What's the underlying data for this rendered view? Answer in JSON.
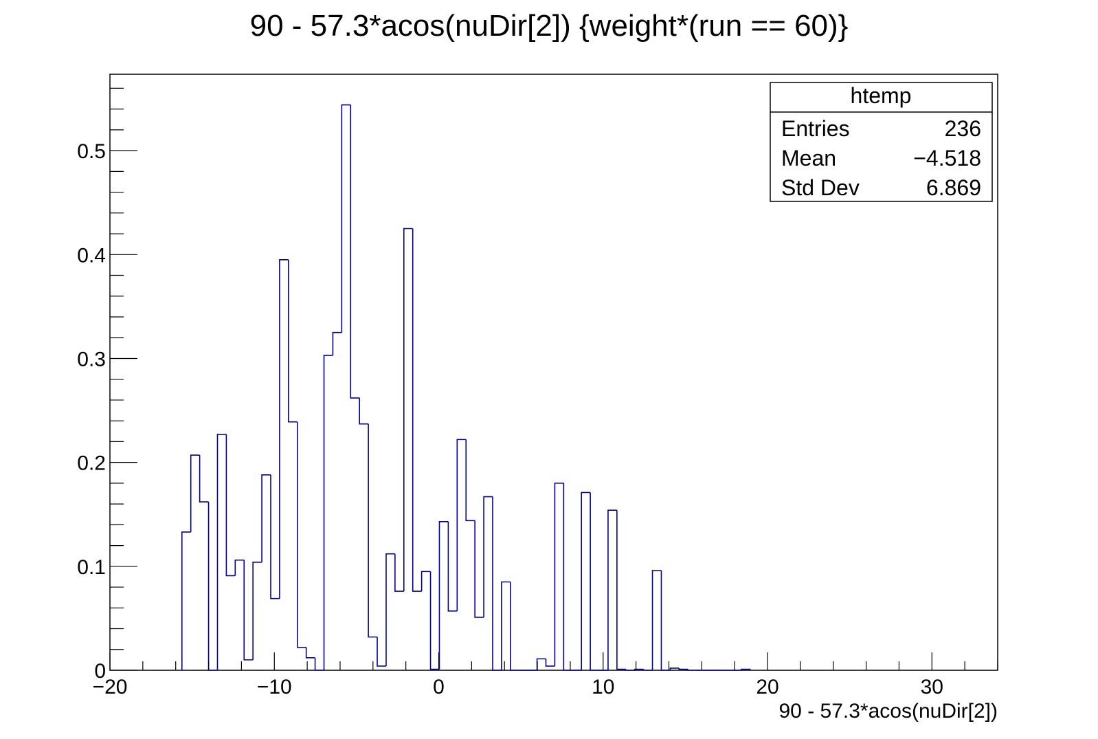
{
  "chart_data": {
    "type": "bar",
    "histogram": true,
    "title": "90 - 57.3*acos(nuDir[2]) {weight*(run == 60)}",
    "xlabel": "90 - 57.3*acos(nuDir[2])",
    "ylabel": "",
    "xlim": [
      -20,
      34
    ],
    "ylim": [
      0,
      0.5735
    ],
    "x_ticks": [
      -20,
      -10,
      0,
      10,
      20,
      30
    ],
    "x_tick_labels": [
      "−20",
      "−10",
      "0",
      "10",
      "20",
      "30"
    ],
    "y_ticks": [
      0,
      0.1,
      0.2,
      0.3,
      0.4,
      0.5
    ],
    "y_tick_labels": [
      "0",
      "0.1",
      "0.2",
      "0.3",
      "0.4",
      "0.5"
    ],
    "line_color": "#000099",
    "bin_width": 0.54,
    "bins": [
      {
        "x_low": -15.62,
        "value": 0.133
      },
      {
        "x_low": -15.08,
        "value": 0.207
      },
      {
        "x_low": -14.54,
        "value": 0.162
      },
      {
        "x_low": -14.0,
        "value": 0.0
      },
      {
        "x_low": -13.46,
        "value": 0.227
      },
      {
        "x_low": -12.92,
        "value": 0.091
      },
      {
        "x_low": -12.38,
        "value": 0.106
      },
      {
        "x_low": -11.84,
        "value": 0.01
      },
      {
        "x_low": -11.3,
        "value": 0.104
      },
      {
        "x_low": -10.76,
        "value": 0.188
      },
      {
        "x_low": -10.22,
        "value": 0.069
      },
      {
        "x_low": -9.68,
        "value": 0.395
      },
      {
        "x_low": -9.14,
        "value": 0.239
      },
      {
        "x_low": -8.6,
        "value": 0.022
      },
      {
        "x_low": -8.06,
        "value": 0.012
      },
      {
        "x_low": -7.52,
        "value": 0.0
      },
      {
        "x_low": -6.98,
        "value": 0.303
      },
      {
        "x_low": -6.44,
        "value": 0.325
      },
      {
        "x_low": -5.9,
        "value": 0.544
      },
      {
        "x_low": -5.36,
        "value": 0.262
      },
      {
        "x_low": -4.82,
        "value": 0.237
      },
      {
        "x_low": -4.28,
        "value": 0.032
      },
      {
        "x_low": -3.74,
        "value": 0.004
      },
      {
        "x_low": -3.2,
        "value": 0.112
      },
      {
        "x_low": -2.66,
        "value": 0.076
      },
      {
        "x_low": -2.12,
        "value": 0.425
      },
      {
        "x_low": -1.58,
        "value": 0.076
      },
      {
        "x_low": -1.04,
        "value": 0.095
      },
      {
        "x_low": -0.5,
        "value": 0.001
      },
      {
        "x_low": 0.04,
        "value": 0.143
      },
      {
        "x_low": 0.58,
        "value": 0.057
      },
      {
        "x_low": 1.12,
        "value": 0.222
      },
      {
        "x_low": 1.66,
        "value": 0.144
      },
      {
        "x_low": 2.2,
        "value": 0.051
      },
      {
        "x_low": 2.74,
        "value": 0.167
      },
      {
        "x_low": 3.28,
        "value": 0.0
      },
      {
        "x_low": 3.82,
        "value": 0.085
      },
      {
        "x_low": 4.36,
        "value": 0.0
      },
      {
        "x_low": 4.9,
        "value": 0.0
      },
      {
        "x_low": 5.44,
        "value": 0.0
      },
      {
        "x_low": 5.98,
        "value": 0.011
      },
      {
        "x_low": 6.52,
        "value": 0.004
      },
      {
        "x_low": 7.06,
        "value": 0.18
      },
      {
        "x_low": 7.6,
        "value": 0.0
      },
      {
        "x_low": 8.14,
        "value": 0.0
      },
      {
        "x_low": 8.68,
        "value": 0.171
      },
      {
        "x_low": 9.22,
        "value": 0.0
      },
      {
        "x_low": 9.76,
        "value": 0.0
      },
      {
        "x_low": 10.3,
        "value": 0.154
      },
      {
        "x_low": 10.84,
        "value": 0.001
      },
      {
        "x_low": 11.38,
        "value": 0.0
      },
      {
        "x_low": 11.92,
        "value": 0.001
      },
      {
        "x_low": 12.46,
        "value": 0.0
      },
      {
        "x_low": 13.0,
        "value": 0.096
      },
      {
        "x_low": 13.54,
        "value": 0.0
      },
      {
        "x_low": 14.08,
        "value": 0.002
      },
      {
        "x_low": 14.62,
        "value": 0.001
      },
      {
        "x_low": 15.16,
        "value": 0.0
      },
      {
        "x_low": 15.7,
        "value": 0.0
      },
      {
        "x_low": 16.24,
        "value": 0.0
      },
      {
        "x_low": 16.78,
        "value": 0.0
      },
      {
        "x_low": 17.32,
        "value": 0.0
      },
      {
        "x_low": 17.86,
        "value": 0.0
      },
      {
        "x_low": 18.4,
        "value": 0.001
      }
    ]
  },
  "stats_box": {
    "name": "htemp",
    "rows": [
      {
        "label": "Entries",
        "value": "236"
      },
      {
        "label": "Mean",
        "value": "−4.518"
      },
      {
        "label": "Std Dev",
        "value": "6.869"
      }
    ]
  }
}
